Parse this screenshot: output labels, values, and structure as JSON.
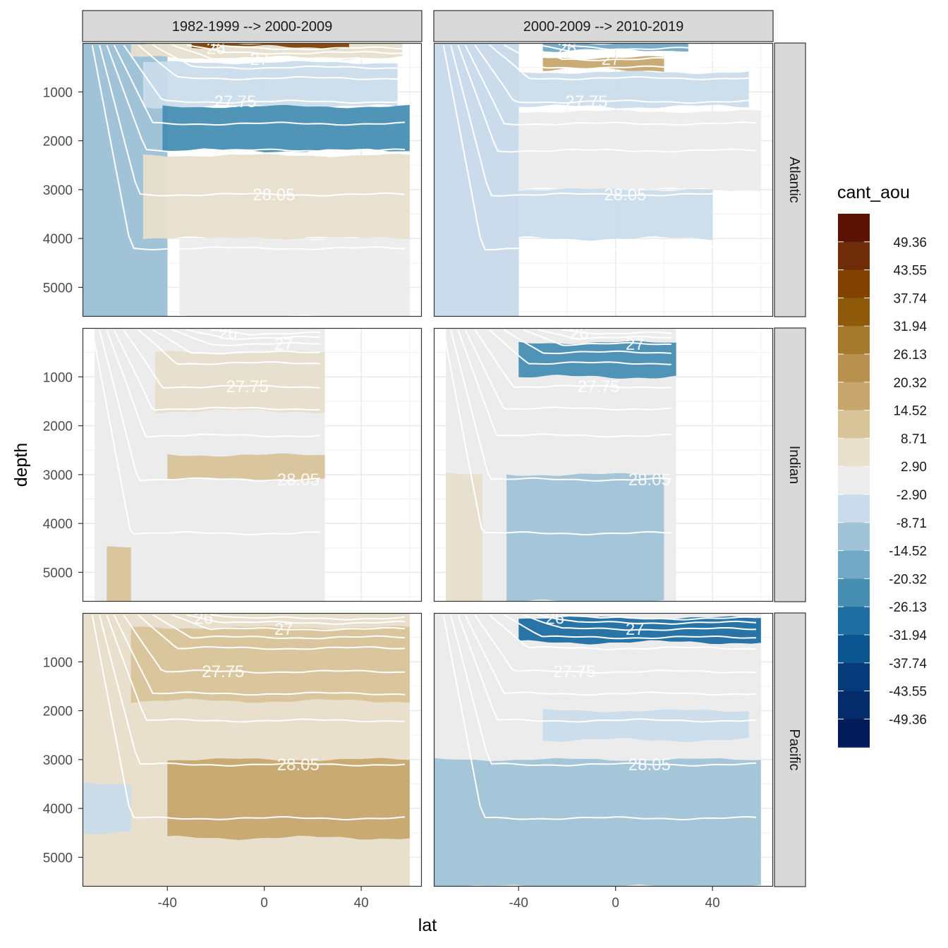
{
  "chart_data": {
    "type": "heatmap",
    "description_kind": "faceted filled-contour sections (depth vs latitude) with white isopycnal contours",
    "xlabel": "lat",
    "ylabel": "depth",
    "x_ticks": [
      "-40",
      "0",
      "40"
    ],
    "x_tick_values": [
      -40,
      0,
      40
    ],
    "y_ticks": [
      "1000",
      "2000",
      "3000",
      "4000",
      "5000"
    ],
    "y_tick_values": [
      1000,
      2000,
      3000,
      4000,
      5000
    ],
    "xlim": [
      -75,
      65
    ],
    "ylim": [
      5600,
      0
    ],
    "y_reversed": true,
    "grid": true,
    "column_facets": [
      "1982-1999 --> 2000-2009",
      "2000-2009 --> 2010-2019"
    ],
    "row_facets": [
      "Atlantic",
      "Indian",
      "Pacific"
    ],
    "legend": {
      "title": "cant_aou",
      "placement": "right",
      "labels": [
        "49.36",
        "43.55",
        "37.74",
        "31.94",
        "26.13",
        "20.32",
        "14.52",
        "8.71",
        "2.90",
        "-2.90",
        "-8.71",
        "-14.52",
        "-20.32",
        "-26.13",
        "-31.94",
        "-37.74",
        "-43.55",
        "-49.36"
      ],
      "colors": [
        "#5b1104",
        "#6f2c08",
        "#834200",
        "#8f5b0a",
        "#a67a2c",
        "#b8914f",
        "#c8a76e",
        "#d9c49a",
        "#e8dfcc",
        "#ebeceb",
        "#cadceb",
        "#a1c3d8",
        "#72a9c6",
        "#478eb3",
        "#1e6ea2",
        "#0b5690",
        "#063c7c",
        "#042c6b",
        "#041b59"
      ]
    },
    "isopycnal_labels": [
      "26",
      "27",
      "27.75",
      "28.05"
    ],
    "panels": [
      {
        "ocean": "Atlantic",
        "period": "1982-1999 --> 2000-2009",
        "bands": [
          {
            "lat": [
              -75,
              -40
            ],
            "depth": [
              0,
              5600
            ],
            "cant_aou": -11
          },
          {
            "lat": [
              -55,
              57
            ],
            "depth": [
              0,
              300
            ],
            "cant_aou": 3
          },
          {
            "lat": [
              -30,
              35
            ],
            "depth": [
              0,
              80
            ],
            "cant_aou": 40
          },
          {
            "lat": [
              -50,
              55
            ],
            "depth": [
              400,
              1300
            ],
            "cant_aou": -6
          },
          {
            "lat": [
              -42,
              60
            ],
            "depth": [
              1300,
              2200
            ],
            "cant_aou": -24
          },
          {
            "lat": [
              -50,
              60
            ],
            "depth": [
              2300,
              4000
            ],
            "cant_aou": 6
          },
          {
            "lat": [
              -35,
              60
            ],
            "depth": [
              4000,
              5600
            ],
            "cant_aou": -1
          }
        ]
      },
      {
        "ocean": "Atlantic",
        "period": "2000-2009 --> 2010-2019",
        "bands": [
          {
            "lat": [
              -75,
              -40
            ],
            "depth": [
              0,
              5600
            ],
            "cant_aou": -6
          },
          {
            "lat": [
              -30,
              30
            ],
            "depth": [
              0,
              150
            ],
            "cant_aou": -16
          },
          {
            "lat": [
              -30,
              20
            ],
            "depth": [
              300,
              550
            ],
            "cant_aou": 20
          },
          {
            "lat": [
              -45,
              55
            ],
            "depth": [
              600,
              1300
            ],
            "cant_aou": -6
          },
          {
            "lat": [
              -40,
              60
            ],
            "depth": [
              1400,
              3000
            ],
            "cant_aou": -1
          },
          {
            "lat": [
              -40,
              40
            ],
            "depth": [
              3000,
              4000
            ],
            "cant_aou": -5
          }
        ]
      },
      {
        "ocean": "Indian",
        "period": "1982-1999 --> 2000-2009",
        "bands": [
          {
            "lat": [
              -70,
              25
            ],
            "depth": [
              0,
              5600
            ],
            "cant_aou": -1
          },
          {
            "lat": [
              -45,
              25
            ],
            "depth": [
              500,
              1700
            ],
            "cant_aou": 7
          },
          {
            "lat": [
              -40,
              25
            ],
            "depth": [
              2600,
              3100
            ],
            "cant_aou": 14
          },
          {
            "lat": [
              -65,
              -55
            ],
            "depth": [
              4500,
              5600
            ],
            "cant_aou": 10
          }
        ]
      },
      {
        "ocean": "Indian",
        "period": "2000-2009 --> 2010-2019",
        "bands": [
          {
            "lat": [
              -70,
              25
            ],
            "depth": [
              0,
              5600
            ],
            "cant_aou": -1
          },
          {
            "lat": [
              -40,
              25
            ],
            "depth": [
              300,
              1000
            ],
            "cant_aou": -22
          },
          {
            "lat": [
              -45,
              20
            ],
            "depth": [
              3000,
              5600
            ],
            "cant_aou": -12
          },
          {
            "lat": [
              -70,
              -55
            ],
            "depth": [
              3000,
              5600
            ],
            "cant_aou": 6
          }
        ]
      },
      {
        "ocean": "Pacific",
        "period": "1982-1999 --> 2000-2009",
        "bands": [
          {
            "lat": [
              -75,
              60
            ],
            "depth": [
              0,
              5600
            ],
            "cant_aou": 3
          },
          {
            "lat": [
              -55,
              60
            ],
            "depth": [
              300,
              1800
            ],
            "cant_aou": 10
          },
          {
            "lat": [
              -40,
              60
            ],
            "depth": [
              3000,
              4600
            ],
            "cant_aou": 16
          },
          {
            "lat": [
              -75,
              -55
            ],
            "depth": [
              3500,
              4500
            ],
            "cant_aou": -5
          }
        ]
      },
      {
        "ocean": "Pacific",
        "period": "2000-2009 --> 2010-2019",
        "bands": [
          {
            "lat": [
              -75,
              60
            ],
            "depth": [
              0,
              5600
            ],
            "cant_aou": -2
          },
          {
            "lat": [
              -40,
              60
            ],
            "depth": [
              100,
              600
            ],
            "cant_aou": -30
          },
          {
            "lat": [
              -75,
              60
            ],
            "depth": [
              3000,
              5600
            ],
            "cant_aou": -12
          },
          {
            "lat": [
              -30,
              55
            ],
            "depth": [
              2000,
              2600
            ],
            "cant_aou": -5
          }
        ]
      }
    ]
  }
}
